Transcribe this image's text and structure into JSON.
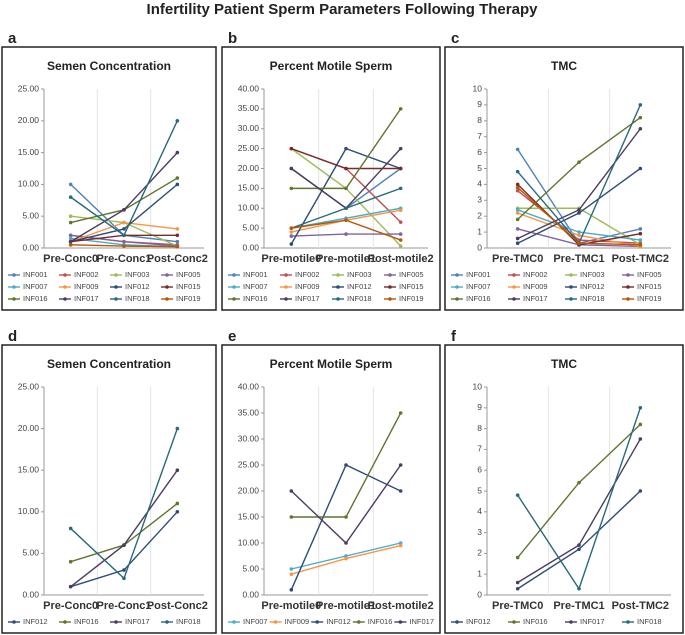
{
  "title": "Infertility Patient Sperm Parameters Following Therapy",
  "chart_data": [
    {
      "type": "line",
      "label": "a",
      "title": "Semen Concentration",
      "categories": [
        "Pre-Conc0",
        "Pre-Conc1",
        "Post-Conc2"
      ],
      "ylim": [
        0,
        25
      ],
      "yticks": [
        {
          "value": 0,
          "label": "0.00"
        },
        {
          "value": 5,
          "label": "5.00"
        },
        {
          "value": 10,
          "label": "10.00"
        },
        {
          "value": 15,
          "label": "15.00"
        },
        {
          "value": 20,
          "label": "20.00"
        },
        {
          "value": 25,
          "label": "25.00"
        }
      ],
      "series": [
        {
          "name": "INF001",
          "color": "#4f81bd",
          "values": [
            10,
            2,
            1
          ]
        },
        {
          "name": "INF002",
          "color": "#c0504d",
          "values": [
            2,
            1,
            0.5
          ]
        },
        {
          "name": "INF003",
          "color": "#9bbb59",
          "values": [
            5,
            4,
            0.3
          ]
        },
        {
          "name": "INF005",
          "color": "#8064a2",
          "values": [
            2,
            1,
            0.3
          ]
        },
        {
          "name": "INF007",
          "color": "#4bacc6",
          "values": [
            1.5,
            0.5,
            0.2
          ]
        },
        {
          "name": "INF009",
          "color": "#f79646",
          "values": [
            1,
            4,
            3
          ]
        },
        {
          "name": "INF012",
          "color": "#2c4d75",
          "values": [
            1,
            3,
            10
          ]
        },
        {
          "name": "INF015",
          "color": "#772c2a",
          "values": [
            1,
            2,
            2
          ]
        },
        {
          "name": "INF016",
          "color": "#5f7530",
          "values": [
            4,
            6,
            11
          ]
        },
        {
          "name": "INF017",
          "color": "#4d3b62",
          "values": [
            1,
            6,
            15
          ]
        },
        {
          "name": "INF018",
          "color": "#276a7c",
          "values": [
            8,
            2,
            20
          ]
        },
        {
          "name": "INF019",
          "color": "#b65708",
          "values": [
            0.5,
            0.3,
            0.2
          ]
        }
      ]
    },
    {
      "type": "line",
      "label": "b",
      "title": "Percent Motile Sperm",
      "categories": [
        "Pre-motile0",
        "Pre-motile1",
        "Post-motile2"
      ],
      "ylim": [
        0,
        40
      ],
      "yticks": [
        {
          "value": 0,
          "label": "0.00"
        },
        {
          "value": 5,
          "label": "5.00"
        },
        {
          "value": 10,
          "label": "10.00"
        },
        {
          "value": 15,
          "label": "15.00"
        },
        {
          "value": 20,
          "label": "20.00"
        },
        {
          "value": 25,
          "label": "25.00"
        },
        {
          "value": 30,
          "label": "30.00"
        },
        {
          "value": 35,
          "label": "35.00"
        },
        {
          "value": 40,
          "label": "40.00"
        }
      ],
      "series": [
        {
          "name": "INF001",
          "color": "#4f81bd",
          "values": [
            20,
            10,
            20
          ]
        },
        {
          "name": "INF002",
          "color": "#c0504d",
          "values": [
            25,
            20,
            6.5
          ]
        },
        {
          "name": "INF003",
          "color": "#9bbb59",
          "values": [
            25,
            15,
            0.5
          ]
        },
        {
          "name": "INF005",
          "color": "#8064a2",
          "values": [
            3,
            3.5,
            3.5
          ]
        },
        {
          "name": "INF007",
          "color": "#4bacc6",
          "values": [
            5,
            7.5,
            10
          ]
        },
        {
          "name": "INF009",
          "color": "#f79646",
          "values": [
            4,
            7,
            9.5
          ]
        },
        {
          "name": "INF012",
          "color": "#2c4d75",
          "values": [
            1,
            25,
            20
          ]
        },
        {
          "name": "INF015",
          "color": "#772c2a",
          "values": [
            25,
            20,
            20
          ]
        },
        {
          "name": "INF016",
          "color": "#5f7530",
          "values": [
            15,
            15,
            35
          ]
        },
        {
          "name": "INF017",
          "color": "#4d3b62",
          "values": [
            20,
            10,
            25
          ]
        },
        {
          "name": "INF018",
          "color": "#276a7c",
          "values": [
            5,
            10,
            15
          ]
        },
        {
          "name": "INF019",
          "color": "#b65708",
          "values": [
            5,
            7,
            2
          ]
        }
      ]
    },
    {
      "type": "line",
      "label": "c",
      "title": "TMC",
      "categories": [
        "Pre-TMC0",
        "Pre-TMC1",
        "Post-TMC2"
      ],
      "ylim": [
        0,
        10
      ],
      "yticks": [
        0,
        1,
        2,
        3,
        4,
        5,
        6,
        7,
        8,
        9,
        10
      ],
      "series": [
        {
          "name": "INF001",
          "color": "#4f81bd",
          "values": [
            6.2,
            0.3,
            1.2
          ]
        },
        {
          "name": "INF002",
          "color": "#c0504d",
          "values": [
            3.6,
            0.5,
            0.3
          ]
        },
        {
          "name": "INF003",
          "color": "#9bbb59",
          "values": [
            2.5,
            2.5,
            0.2
          ]
        },
        {
          "name": "INF005",
          "color": "#8064a2",
          "values": [
            1.2,
            0.2,
            0.1
          ]
        },
        {
          "name": "INF007",
          "color": "#4bacc6",
          "values": [
            2.4,
            1,
            0.5
          ]
        },
        {
          "name": "INF009",
          "color": "#f79646",
          "values": [
            2.2,
            0.8,
            0.1
          ]
        },
        {
          "name": "INF012",
          "color": "#2c4d75",
          "values": [
            0.3,
            2.2,
            5
          ]
        },
        {
          "name": "INF015",
          "color": "#772c2a",
          "values": [
            4,
            0.2,
            0.9
          ]
        },
        {
          "name": "INF016",
          "color": "#5f7530",
          "values": [
            1.8,
            5.4,
            8.2
          ]
        },
        {
          "name": "INF017",
          "color": "#4d3b62",
          "values": [
            0.6,
            2.4,
            7.5
          ]
        },
        {
          "name": "INF018",
          "color": "#276a7c",
          "values": [
            4.8,
            0.3,
            9
          ]
        },
        {
          "name": "INF019",
          "color": "#b65708",
          "values": [
            3.8,
            0.3,
            0.2
          ]
        }
      ]
    },
    {
      "type": "line",
      "label": "d",
      "title": "Semen Concentration",
      "categories": [
        "Pre-Conc0",
        "Pre-Conc1",
        "Post-Conc2"
      ],
      "ylim": [
        0,
        25
      ],
      "yticks": [
        {
          "value": 0,
          "label": "0.00"
        },
        {
          "value": 5,
          "label": "5.00"
        },
        {
          "value": 10,
          "label": "10.00"
        },
        {
          "value": 15,
          "label": "15.00"
        },
        {
          "value": 20,
          "label": "20.00"
        },
        {
          "value": 25,
          "label": "25.00"
        }
      ],
      "series": [
        {
          "name": "INF012",
          "color": "#2c4d75",
          "values": [
            1,
            3,
            10
          ]
        },
        {
          "name": "INF016",
          "color": "#5f7530",
          "values": [
            4,
            6,
            11
          ]
        },
        {
          "name": "INF017",
          "color": "#4d3b62",
          "values": [
            1,
            6,
            15
          ]
        },
        {
          "name": "INF018",
          "color": "#276a7c",
          "values": [
            8,
            2,
            20
          ]
        }
      ]
    },
    {
      "type": "line",
      "label": "e",
      "title": "Percent Motile Sperm",
      "categories": [
        "Pre-motile0",
        "Pre-motile1",
        "Post-motile2"
      ],
      "ylim": [
        0,
        40
      ],
      "yticks": [
        {
          "value": 0,
          "label": "0.00"
        },
        {
          "value": 5,
          "label": "5.00"
        },
        {
          "value": 10,
          "label": "10.00"
        },
        {
          "value": 15,
          "label": "15.00"
        },
        {
          "value": 20,
          "label": "20.00"
        },
        {
          "value": 25,
          "label": "25.00"
        },
        {
          "value": 30,
          "label": "30.00"
        },
        {
          "value": 35,
          "label": "35.00"
        },
        {
          "value": 40,
          "label": "40.00"
        }
      ],
      "series": [
        {
          "name": "INF007",
          "color": "#4bacc6",
          "values": [
            5,
            7.5,
            10
          ]
        },
        {
          "name": "INF009",
          "color": "#f79646",
          "values": [
            4,
            7,
            9.5
          ]
        },
        {
          "name": "INF012",
          "color": "#2c4d75",
          "values": [
            1,
            25,
            20
          ]
        },
        {
          "name": "INF016",
          "color": "#5f7530",
          "values": [
            15,
            15,
            35
          ]
        },
        {
          "name": "INF017",
          "color": "#4d3b62",
          "values": [
            20,
            10,
            25
          ]
        }
      ]
    },
    {
      "type": "line",
      "label": "f",
      "title": "TMC",
      "categories": [
        "Pre-TMC0",
        "Pre-TMC1",
        "Post-TMC2"
      ],
      "ylim": [
        0,
        10
      ],
      "yticks": [
        0,
        1,
        2,
        3,
        4,
        5,
        6,
        7,
        8,
        9,
        10
      ],
      "series": [
        {
          "name": "INF012",
          "color": "#2c4d75",
          "values": [
            0.3,
            2.2,
            5
          ]
        },
        {
          "name": "INF016",
          "color": "#5f7530",
          "values": [
            1.8,
            5.4,
            8.2
          ]
        },
        {
          "name": "INF017",
          "color": "#4d3b62",
          "values": [
            0.6,
            2.4,
            7.5
          ]
        },
        {
          "name": "INF018",
          "color": "#276a7c",
          "values": [
            4.8,
            0.3,
            9
          ]
        }
      ]
    }
  ]
}
